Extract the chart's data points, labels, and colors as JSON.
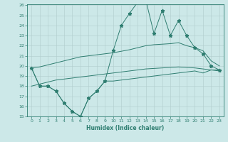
{
  "xlabel": "Humidex (Indice chaleur)",
  "x": [
    0,
    1,
    2,
    3,
    4,
    5,
    6,
    7,
    8,
    9,
    10,
    11,
    12,
    13,
    14,
    15,
    16,
    17,
    18,
    19,
    20,
    21,
    22,
    23
  ],
  "line_bottom_jagged": [
    19.8,
    18.0,
    18.0,
    17.5,
    16.3,
    15.5,
    15.0,
    16.8,
    17.5,
    18.5,
    18.5,
    18.6,
    18.7,
    18.8,
    18.9,
    19.0,
    19.1,
    19.2,
    19.3,
    19.4,
    19.5,
    19.3,
    19.6,
    19.6
  ],
  "line_smooth_low": [
    18.0,
    18.2,
    18.4,
    18.6,
    18.7,
    18.8,
    18.9,
    19.0,
    19.1,
    19.2,
    19.3,
    19.4,
    19.5,
    19.6,
    19.7,
    19.75,
    19.8,
    19.85,
    19.9,
    19.85,
    19.8,
    19.7,
    19.6,
    19.5
  ],
  "line_smooth_high": [
    19.8,
    19.9,
    20.1,
    20.3,
    20.5,
    20.7,
    20.9,
    21.0,
    21.1,
    21.2,
    21.3,
    21.45,
    21.6,
    21.8,
    22.0,
    22.1,
    22.15,
    22.2,
    22.3,
    22.0,
    21.8,
    21.5,
    20.5,
    20.0
  ],
  "line_top_jagged": [
    19.8,
    18.0,
    18.0,
    17.5,
    16.3,
    15.5,
    15.0,
    16.8,
    17.5,
    18.5,
    21.5,
    24.0,
    25.2,
    26.3,
    26.5,
    23.2,
    25.5,
    23.0,
    24.5,
    23.0,
    21.8,
    21.2,
    20.0,
    19.6
  ],
  "color": "#2e7d70",
  "bg_color": "#cce8e8",
  "grid_color_major": "#b0cccc",
  "grid_color_minor": "#c8e0e0",
  "ylim": [
    15,
    26
  ],
  "yticks": [
    15,
    16,
    17,
    18,
    19,
    20,
    21,
    22,
    23,
    24,
    25,
    26
  ],
  "xticks": [
    0,
    1,
    2,
    3,
    4,
    5,
    6,
    7,
    8,
    9,
    10,
    11,
    12,
    13,
    14,
    15,
    16,
    17,
    18,
    19,
    20,
    21,
    22,
    23
  ]
}
